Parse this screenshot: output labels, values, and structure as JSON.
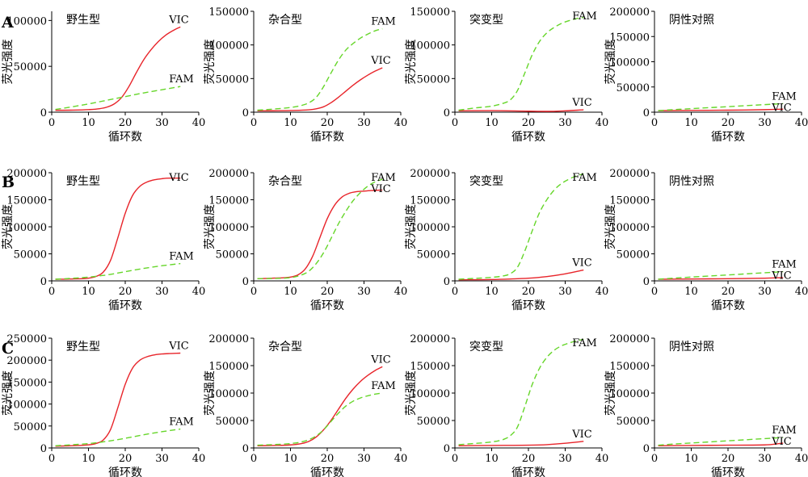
{
  "colors": {
    "VIC": "#e8242a",
    "FAM": "#66d62a"
  },
  "dash": {
    "VIC": "none",
    "FAM": "7,4"
  },
  "chart_data": [
    {
      "row": "A",
      "type": "line",
      "title": "野生型",
      "xlabel": "循环数",
      "ylabel": "荧光强度",
      "xlim": [
        0,
        40
      ],
      "ylim": [
        0,
        110000
      ],
      "xticks": [
        0,
        10,
        20,
        30,
        40
      ],
      "yticks": [
        0,
        50000,
        100000
      ],
      "series": [
        {
          "name": "VIC",
          "x": [
            1,
            5,
            10,
            13,
            15,
            17,
            19,
            21,
            23,
            25,
            27,
            29,
            31,
            33,
            35
          ],
          "y": [
            2000,
            2200,
            2800,
            3800,
            5500,
            9000,
            16000,
            28000,
            43000,
            57000,
            68000,
            77000,
            84000,
            89000,
            93000
          ]
        },
        {
          "name": "FAM",
          "x": [
            1,
            5,
            10,
            15,
            20,
            25,
            30,
            35
          ],
          "y": [
            3000,
            5500,
            9000,
            13000,
            17000,
            21000,
            24500,
            28000
          ]
        }
      ]
    },
    {
      "row": "A",
      "type": "line",
      "title": "杂合型",
      "xlabel": "循环数",
      "ylabel": "荧光强度",
      "xlim": [
        0,
        40
      ],
      "ylim": [
        0,
        150000
      ],
      "xticks": [
        0,
        10,
        20,
        30,
        40
      ],
      "yticks": [
        0,
        50000,
        100000,
        150000
      ],
      "series": [
        {
          "name": "VIC",
          "x": [
            1,
            5,
            10,
            15,
            17,
            19,
            21,
            23,
            25,
            27,
            29,
            31,
            33,
            35
          ],
          "y": [
            2000,
            2100,
            2500,
            3500,
            5000,
            8000,
            14000,
            22000,
            31000,
            40000,
            48000,
            55000,
            61000,
            66000
          ]
        },
        {
          "name": "FAM",
          "x": [
            1,
            5,
            10,
            13,
            15,
            17,
            19,
            21,
            23,
            25,
            27,
            29,
            31,
            33,
            35
          ],
          "y": [
            3000,
            4500,
            7000,
            10000,
            14000,
            22000,
            38000,
            58000,
            77000,
            92000,
            102000,
            110000,
            116000,
            121000,
            124000
          ]
        }
      ]
    },
    {
      "row": "A",
      "type": "line",
      "title": "突变型",
      "xlabel": "循环数",
      "ylabel": "荧光强度",
      "xlim": [
        0,
        40
      ],
      "ylim": [
        0,
        150000
      ],
      "xticks": [
        0,
        10,
        20,
        30,
        40
      ],
      "yticks": [
        0,
        50000,
        100000,
        150000
      ],
      "series": [
        {
          "name": "VIC",
          "x": [
            1,
            10,
            20,
            25,
            30,
            35
          ],
          "y": [
            2000,
            2300,
            1500,
            1200,
            2000,
            3500
          ]
        },
        {
          "name": "FAM",
          "x": [
            1,
            5,
            10,
            13,
            15,
            17,
            19,
            21,
            23,
            25,
            27,
            29,
            31,
            33,
            35
          ],
          "y": [
            3000,
            6000,
            9000,
            13000,
            18000,
            32000,
            58000,
            85000,
            105000,
            118000,
            126000,
            132000,
            136000,
            139000,
            141000
          ]
        }
      ]
    },
    {
      "row": "A",
      "type": "line",
      "title": "阴性对照",
      "xlabel": "循环数",
      "ylabel": "荧光强度",
      "xlim": [
        0,
        40
      ],
      "ylim": [
        0,
        200000
      ],
      "xticks": [
        0,
        10,
        20,
        30,
        40
      ],
      "yticks": [
        0,
        50000,
        100000,
        150000,
        200000
      ],
      "series": [
        {
          "name": "VIC",
          "x": [
            1,
            10,
            20,
            30,
            35
          ],
          "y": [
            3000,
            3500,
            4000,
            5000,
            6000
          ]
        },
        {
          "name": "FAM",
          "x": [
            1,
            5,
            10,
            15,
            20,
            25,
            30,
            35
          ],
          "y": [
            3000,
            5000,
            7000,
            9000,
            11000,
            13000,
            15000,
            17000
          ]
        }
      ]
    },
    {
      "row": "B",
      "type": "line",
      "title": "野生型",
      "xlabel": "循环数",
      "ylabel": "荧光强度",
      "xlim": [
        0,
        40
      ],
      "ylim": [
        0,
        200000
      ],
      "xticks": [
        0,
        10,
        20,
        30,
        40
      ],
      "yticks": [
        0,
        50000,
        100000,
        150000,
        200000
      ],
      "series": [
        {
          "name": "VIC",
          "x": [
            1,
            5,
            10,
            12,
            14,
            16,
            18,
            20,
            22,
            24,
            26,
            28,
            30,
            32,
            35
          ],
          "y": [
            3000,
            3500,
            5000,
            8000,
            16000,
            38000,
            80000,
            125000,
            158000,
            175000,
            183000,
            187000,
            189000,
            190000,
            190000
          ]
        },
        {
          "name": "FAM",
          "x": [
            1,
            5,
            10,
            15,
            20,
            25,
            30,
            35
          ],
          "y": [
            3000,
            4500,
            7000,
            11000,
            17000,
            23000,
            28000,
            32000
          ]
        }
      ]
    },
    {
      "row": "B",
      "type": "line",
      "title": "杂合型",
      "xlabel": "循环数",
      "ylabel": "荧光强度",
      "xlim": [
        0,
        40
      ],
      "ylim": [
        0,
        200000
      ],
      "xticks": [
        0,
        10,
        20,
        30,
        40
      ],
      "yticks": [
        0,
        50000,
        100000,
        150000,
        200000
      ],
      "series": [
        {
          "name": "VIC",
          "x": [
            1,
            5,
            10,
            12,
            14,
            16,
            18,
            20,
            22,
            24,
            26,
            28,
            30,
            32,
            35
          ],
          "y": [
            4000,
            5000,
            7000,
            11000,
            22000,
            45000,
            80000,
            115000,
            140000,
            155000,
            162000,
            165000,
            166000,
            167000,
            168000
          ]
        },
        {
          "name": "FAM",
          "x": [
            1,
            5,
            10,
            13,
            15,
            17,
            19,
            21,
            23,
            25,
            27,
            29,
            31,
            33,
            35
          ],
          "y": [
            4000,
            4500,
            6000,
            11000,
            18000,
            32000,
            52000,
            78000,
            105000,
            128000,
            148000,
            163000,
            175000,
            183000,
            188000
          ]
        }
      ]
    },
    {
      "row": "B",
      "type": "line",
      "title": "突变型",
      "xlabel": "循环数",
      "ylabel": "荧光强度",
      "xlim": [
        0,
        40
      ],
      "ylim": [
        0,
        200000
      ],
      "xticks": [
        0,
        10,
        20,
        30,
        40
      ],
      "yticks": [
        0,
        50000,
        100000,
        150000,
        200000
      ],
      "series": [
        {
          "name": "VIC",
          "x": [
            1,
            10,
            15,
            20,
            25,
            30,
            35
          ],
          "y": [
            2000,
            2500,
            3500,
            5000,
            8000,
            13000,
            20000
          ]
        },
        {
          "name": "FAM",
          "x": [
            1,
            5,
            10,
            13,
            15,
            17,
            19,
            21,
            23,
            25,
            27,
            29,
            31,
            33,
            35
          ],
          "y": [
            3000,
            4500,
            6500,
            9000,
            13000,
            25000,
            55000,
            92000,
            126000,
            150000,
            168000,
            180000,
            188000,
            194000,
            198000
          ]
        }
      ]
    },
    {
      "row": "B",
      "type": "line",
      "title": "阴性对照",
      "xlabel": "循环数",
      "ylabel": "荧光强度",
      "xlim": [
        0,
        40
      ],
      "ylim": [
        0,
        200000
      ],
      "xticks": [
        0,
        10,
        20,
        30,
        40
      ],
      "yticks": [
        0,
        50000,
        100000,
        150000,
        200000
      ],
      "series": [
        {
          "name": "VIC",
          "x": [
            1,
            10,
            20,
            30,
            35
          ],
          "y": [
            3000,
            3500,
            4000,
            5000,
            6000
          ]
        },
        {
          "name": "FAM",
          "x": [
            1,
            5,
            10,
            15,
            20,
            25,
            30,
            35
          ],
          "y": [
            3000,
            5000,
            7000,
            9000,
            11000,
            13000,
            15000,
            17000
          ]
        }
      ]
    },
    {
      "row": "C",
      "type": "line",
      "title": "野生型",
      "xlabel": "循环数",
      "ylabel": "荧光强度",
      "xlim": [
        0,
        40
      ],
      "ylim": [
        0,
        250000
      ],
      "xticks": [
        0,
        10,
        20,
        30,
        40
      ],
      "yticks": [
        0,
        50000,
        100000,
        150000,
        200000,
        250000
      ],
      "series": [
        {
          "name": "VIC",
          "x": [
            1,
            5,
            10,
            12,
            14,
            16,
            18,
            20,
            22,
            24,
            26,
            28,
            30,
            32,
            35
          ],
          "y": [
            4000,
            5000,
            7000,
            10000,
            18000,
            42000,
            92000,
            145000,
            182000,
            200000,
            208000,
            212000,
            214000,
            215000,
            216000
          ]
        },
        {
          "name": "FAM",
          "x": [
            1,
            5,
            10,
            15,
            20,
            25,
            30,
            35
          ],
          "y": [
            5000,
            7000,
            10000,
            15000,
            22000,
            30000,
            37000,
            43000
          ]
        }
      ]
    },
    {
      "row": "C",
      "type": "line",
      "title": "杂合型",
      "xlabel": "循环数",
      "ylabel": "荧光强度",
      "xlim": [
        0,
        40
      ],
      "ylim": [
        0,
        200000
      ],
      "xticks": [
        0,
        10,
        20,
        30,
        40
      ],
      "yticks": [
        0,
        50000,
        100000,
        150000,
        200000
      ],
      "series": [
        {
          "name": "VIC",
          "x": [
            1,
            5,
            10,
            13,
            15,
            17,
            19,
            21,
            23,
            25,
            27,
            29,
            31,
            33,
            35
          ],
          "y": [
            4000,
            4500,
            5500,
            8000,
            12000,
            20000,
            33000,
            50000,
            70000,
            90000,
            107000,
            121000,
            132000,
            141000,
            148000
          ]
        },
        {
          "name": "FAM",
          "x": [
            1,
            5,
            10,
            13,
            15,
            17,
            19,
            21,
            23,
            25,
            27,
            29,
            31,
            33,
            35
          ],
          "y": [
            5000,
            6000,
            8000,
            11000,
            15000,
            22000,
            33000,
            48000,
            63000,
            76000,
            85000,
            91000,
            95000,
            98000,
            100000
          ]
        }
      ]
    },
    {
      "row": "C",
      "type": "line",
      "title": "突变型",
      "xlabel": "循环数",
      "ylabel": "荧光强度",
      "xlim": [
        0,
        40
      ],
      "ylim": [
        0,
        200000
      ],
      "xticks": [
        0,
        10,
        20,
        30,
        40
      ],
      "yticks": [
        0,
        50000,
        100000,
        150000,
        200000
      ],
      "series": [
        {
          "name": "VIC",
          "x": [
            1,
            10,
            20,
            25,
            30,
            35
          ],
          "y": [
            4000,
            4500,
            5000,
            6000,
            8500,
            12000
          ]
        },
        {
          "name": "FAM",
          "x": [
            1,
            5,
            10,
            13,
            15,
            17,
            19,
            21,
            23,
            25,
            27,
            29,
            31,
            33,
            35
          ],
          "y": [
            6000,
            8000,
            11000,
            15000,
            22000,
            38000,
            75000,
            115000,
            145000,
            165000,
            178000,
            186000,
            191000,
            195000,
            198000
          ]
        }
      ]
    },
    {
      "row": "C",
      "type": "line",
      "title": "阴性对照",
      "xlabel": "循环数",
      "ylabel": "荧光强度",
      "xlim": [
        0,
        40
      ],
      "ylim": [
        0,
        200000
      ],
      "xticks": [
        0,
        10,
        20,
        30,
        40
      ],
      "yticks": [
        0,
        50000,
        100000,
        150000,
        200000
      ],
      "series": [
        {
          "name": "VIC",
          "x": [
            1,
            10,
            20,
            30,
            33,
            35
          ],
          "y": [
            4000,
            4500,
            5000,
            5500,
            7000,
            9000
          ]
        },
        {
          "name": "FAM",
          "x": [
            1,
            5,
            10,
            15,
            20,
            25,
            30,
            35
          ],
          "y": [
            5000,
            7000,
            9000,
            11000,
            13000,
            15000,
            17000,
            19000
          ]
        }
      ]
    }
  ]
}
